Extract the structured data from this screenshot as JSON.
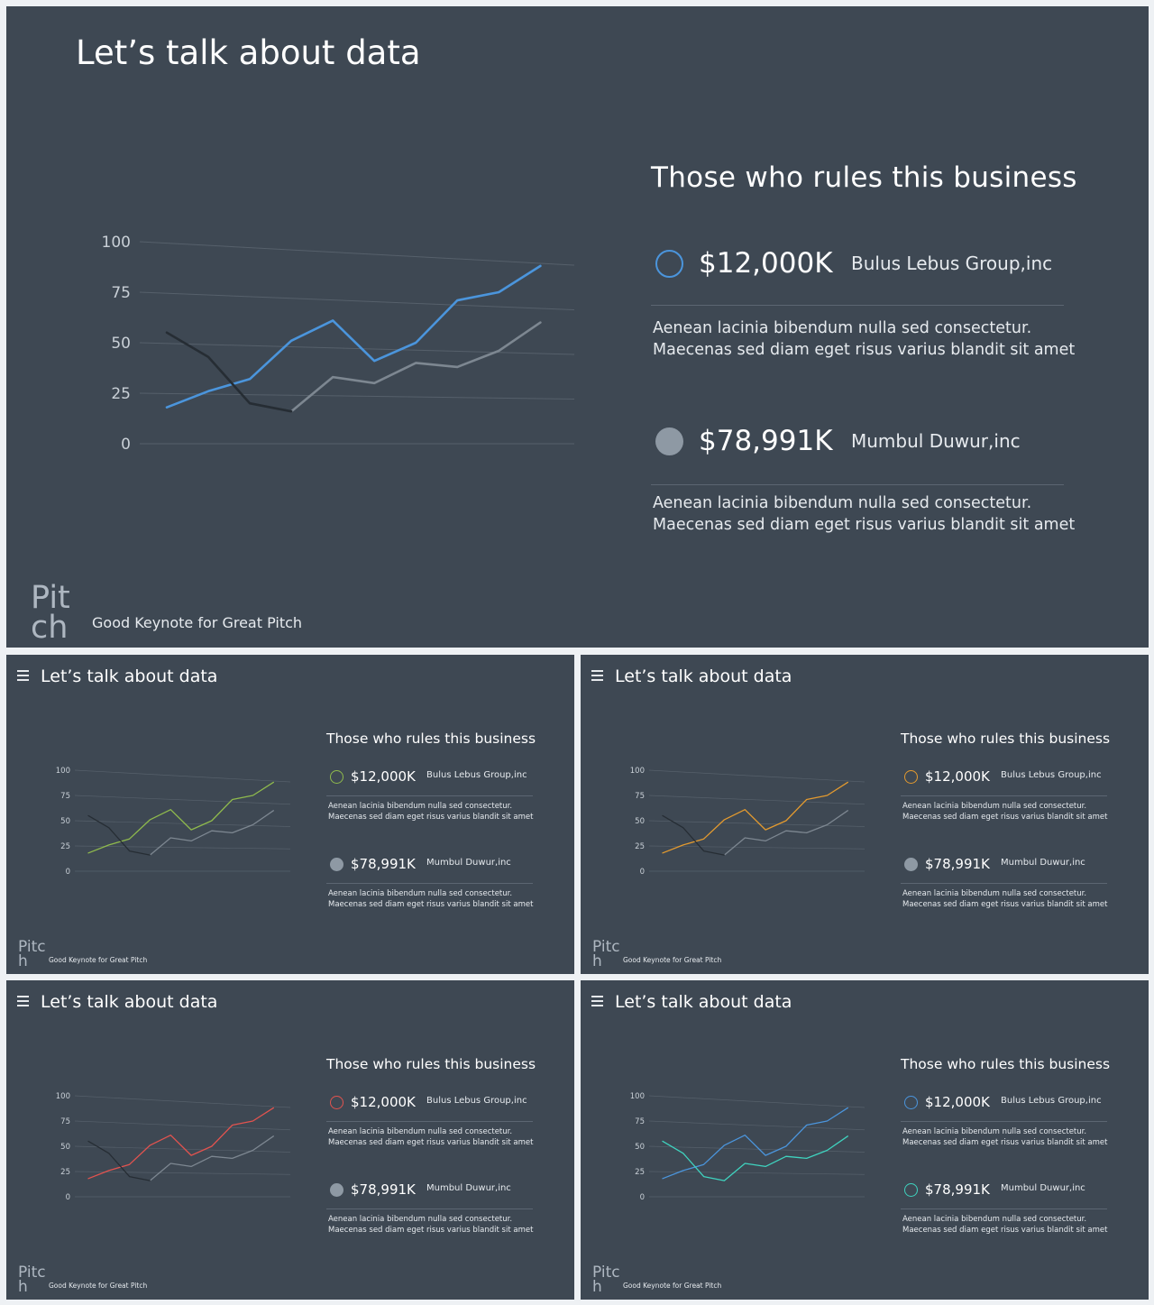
{
  "slide": {
    "title": "Let’s talk about data",
    "panel_title": "Those who rules this business",
    "brand": "Pitch",
    "tagline": "Good Keynote for Great Pitch",
    "entries": [
      {
        "amount": "$12,000K",
        "company": "Bulus Lebus Group,inc",
        "description_line1": "Aenean lacinia bibendum nulla sed consectetur.",
        "description_line2": "Maecenas sed diam eget risus varius blandit sit amet"
      },
      {
        "amount": "$78,991K",
        "company": "Mumbul Duwur,inc",
        "description_line1": "Aenean lacinia bibendum nulla sed consectetur.",
        "description_line2": "Maecenas sed diam eget risus varius blandit sit amet"
      }
    ]
  },
  "icons": {
    "menu": "hamburger-menu-icon",
    "entry_marker": "circle-icon"
  },
  "colors": {
    "background": "#3e4853",
    "gray_series": "#7d8791",
    "dark_series": "#262d34",
    "variants": {
      "main": "#4b95dc",
      "green": "#8fba4d",
      "orange": "#e39a2f",
      "red": "#e2534f",
      "blue_teal_primary": "#4b95dc",
      "blue_teal_secondary": "#3fd3bf"
    }
  },
  "chart_data": [
    {
      "type": "line",
      "variant": "main",
      "y_ticks": [
        "100",
        "75",
        "50",
        "25",
        "0"
      ],
      "ylim": [
        0,
        100
      ],
      "grid": true,
      "series": [
        {
          "values": [
            18,
            26,
            32,
            51,
            61,
            41,
            50,
            71,
            75,
            88
          ]
        },
        {
          "values": [
            null,
            null,
            null,
            16,
            33,
            30,
            40,
            38,
            46,
            60
          ]
        },
        {
          "values": [
            55,
            43,
            20,
            16,
            null,
            null,
            null,
            null,
            null,
            null
          ]
        }
      ]
    },
    {
      "type": "line",
      "variant": "green",
      "y_ticks": [
        "100",
        "75",
        "50",
        "25",
        "0"
      ],
      "ylim": [
        0,
        100
      ],
      "grid": true,
      "series": [
        {
          "values": [
            18,
            26,
            32,
            51,
            61,
            41,
            50,
            71,
            75,
            88
          ]
        },
        {
          "values": [
            null,
            null,
            null,
            16,
            33,
            30,
            40,
            38,
            46,
            60
          ]
        },
        {
          "values": [
            55,
            43,
            20,
            16,
            null,
            null,
            null,
            null,
            null,
            null
          ]
        }
      ]
    },
    {
      "type": "line",
      "variant": "orange",
      "y_ticks": [
        "100",
        "75",
        "50",
        "25",
        "0"
      ],
      "ylim": [
        0,
        100
      ],
      "grid": true,
      "series": [
        {
          "values": [
            18,
            26,
            32,
            51,
            61,
            41,
            50,
            71,
            75,
            88
          ]
        },
        {
          "values": [
            null,
            null,
            null,
            16,
            33,
            30,
            40,
            38,
            46,
            60
          ]
        },
        {
          "values": [
            55,
            43,
            20,
            16,
            null,
            null,
            null,
            null,
            null,
            null
          ]
        }
      ]
    },
    {
      "type": "line",
      "variant": "red",
      "y_ticks": [
        "100",
        "75",
        "50",
        "25",
        "0"
      ],
      "ylim": [
        0,
        100
      ],
      "grid": true,
      "series": [
        {
          "values": [
            18,
            26,
            32,
            51,
            61,
            41,
            50,
            71,
            75,
            88
          ]
        },
        {
          "values": [
            null,
            null,
            null,
            16,
            33,
            30,
            40,
            38,
            46,
            60
          ]
        },
        {
          "values": [
            55,
            43,
            20,
            16,
            null,
            null,
            null,
            null,
            null,
            null
          ]
        }
      ]
    },
    {
      "type": "line",
      "variant": "blue-teal",
      "y_ticks": [
        "100",
        "75",
        "50",
        "25",
        "0"
      ],
      "ylim": [
        0,
        100
      ],
      "grid": true,
      "series": [
        {
          "values": [
            18,
            26,
            32,
            51,
            61,
            41,
            50,
            71,
            75,
            88
          ]
        },
        {
          "values": [
            55,
            43,
            20,
            16,
            33,
            30,
            40,
            38,
            46,
            60
          ]
        }
      ]
    }
  ]
}
